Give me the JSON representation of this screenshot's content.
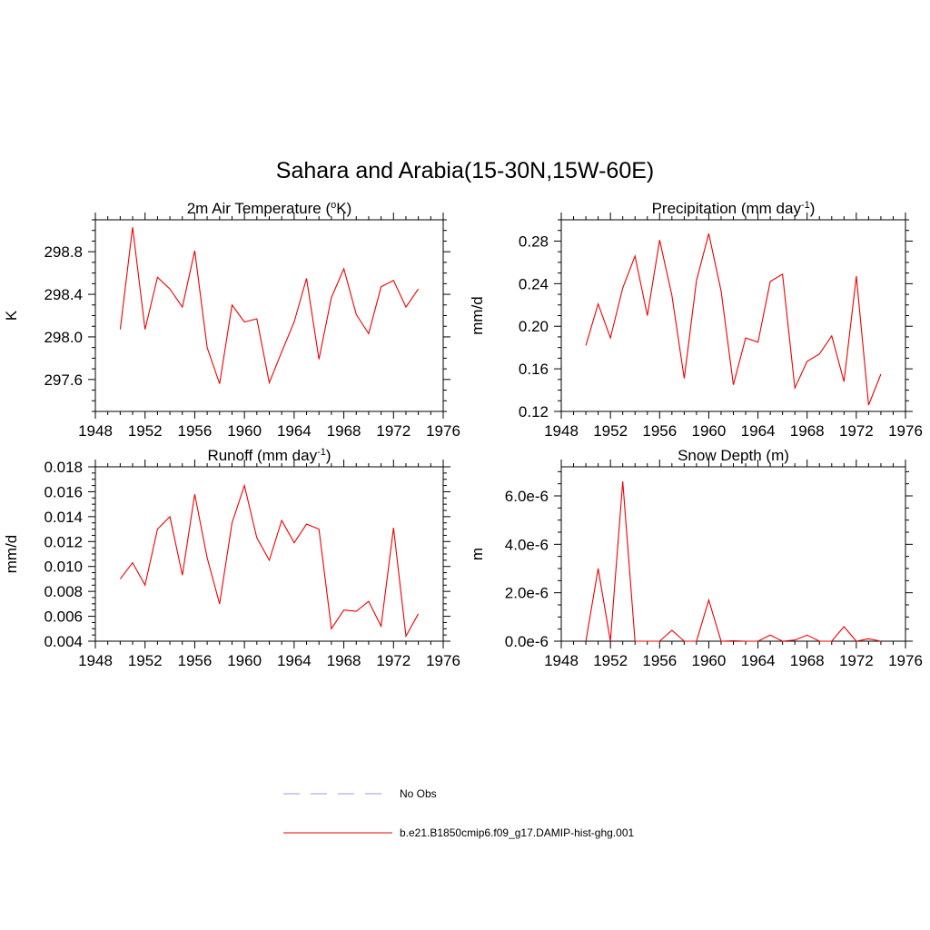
{
  "main_title": "Sahara and Arabia(15-30N,15W-60E)",
  "legend": [
    {
      "label": "No Obs",
      "color": "#9999ee",
      "dashed": true
    },
    {
      "label": "b.e21.B1850cmip6.f09_g17.DAMIP-hist-ghg.001",
      "color": "#ee0000",
      "dashed": false
    }
  ],
  "chart_data": [
    {
      "type": "line",
      "title": "2m Air Temperature (",
      "title_sup": "o",
      "title_tail": "K)",
      "ylabel": "K",
      "xlim": [
        1948,
        1976
      ],
      "ylim": [
        297.3,
        299.1
      ],
      "xticks": [
        1948,
        1952,
        1956,
        1960,
        1964,
        1968,
        1972,
        1976
      ],
      "yticks": [
        297.6,
        298.0,
        298.4,
        298.8
      ],
      "ytick_labels": [
        "297.6",
        "298.0",
        "298.4",
        "298.8"
      ],
      "x": [
        1950,
        1951,
        1952,
        1953,
        1954,
        1955,
        1956,
        1957,
        1958,
        1959,
        1960,
        1961,
        1962,
        1963,
        1964,
        1965,
        1966,
        1967,
        1968,
        1969,
        1970,
        1971,
        1972,
        1973,
        1974
      ],
      "series": [
        {
          "color": "#ee0000",
          "values": [
            298.07,
            299.03,
            298.07,
            298.56,
            298.45,
            298.28,
            298.81,
            297.9,
            297.56,
            298.3,
            298.14,
            298.17,
            297.57,
            297.86,
            298.14,
            298.55,
            297.79,
            298.37,
            298.64,
            298.21,
            298.03,
            298.47,
            298.53,
            298.28,
            298.45
          ]
        }
      ]
    },
    {
      "type": "line",
      "title": "Precipitation (mm day",
      "title_sup": "-1",
      "title_tail": ")",
      "ylabel": "mm/d",
      "xlim": [
        1948,
        1976
      ],
      "ylim": [
        0.12,
        0.3
      ],
      "xticks": [
        1948,
        1952,
        1956,
        1960,
        1964,
        1968,
        1972,
        1976
      ],
      "yticks": [
        0.12,
        0.16,
        0.2,
        0.24,
        0.28
      ],
      "ytick_labels": [
        "0.12",
        "0.16",
        "0.20",
        "0.24",
        "0.28"
      ],
      "x": [
        1950,
        1951,
        1952,
        1953,
        1954,
        1955,
        1956,
        1957,
        1958,
        1959,
        1960,
        1961,
        1962,
        1963,
        1964,
        1965,
        1966,
        1967,
        1968,
        1969,
        1970,
        1971,
        1972,
        1973,
        1974
      ],
      "series": [
        {
          "color": "#ee0000",
          "values": [
            0.182,
            0.221,
            0.189,
            0.236,
            0.266,
            0.21,
            0.281,
            0.229,
            0.151,
            0.243,
            0.287,
            0.233,
            0.145,
            0.189,
            0.185,
            0.242,
            0.249,
            0.142,
            0.167,
            0.174,
            0.191,
            0.148,
            0.247,
            0.126,
            0.155
          ]
        }
      ]
    },
    {
      "type": "line",
      "title": "Runoff (mm day",
      "title_sup": "-1",
      "title_tail": ")",
      "ylabel": "mm/d",
      "xlim": [
        1948,
        1976
      ],
      "ylim": [
        0.004,
        0.018
      ],
      "xticks": [
        1948,
        1952,
        1956,
        1960,
        1964,
        1968,
        1972,
        1976
      ],
      "yticks": [
        0.004,
        0.006,
        0.008,
        0.01,
        0.012,
        0.014,
        0.016,
        0.018
      ],
      "ytick_labels": [
        "0.004",
        "0.006",
        "0.008",
        "0.010",
        "0.012",
        "0.014",
        "0.016",
        "0.018"
      ],
      "x": [
        1950,
        1951,
        1952,
        1953,
        1954,
        1955,
        1956,
        1957,
        1958,
        1959,
        1960,
        1961,
        1962,
        1963,
        1964,
        1965,
        1966,
        1967,
        1968,
        1969,
        1970,
        1971,
        1972,
        1973,
        1974
      ],
      "series": [
        {
          "color": "#ee0000",
          "values": [
            0.009,
            0.0103,
            0.0085,
            0.013,
            0.014,
            0.0093,
            0.0158,
            0.0107,
            0.007,
            0.0135,
            0.0165,
            0.0123,
            0.0105,
            0.0137,
            0.0119,
            0.0134,
            0.013,
            0.005,
            0.0065,
            0.0064,
            0.0072,
            0.0052,
            0.0131,
            0.0044,
            0.0062
          ]
        }
      ]
    },
    {
      "type": "line",
      "title": "Snow Depth (m)",
      "title_sup": "",
      "title_tail": "",
      "ylabel": "m",
      "xlim": [
        1948,
        1976
      ],
      "ylim": [
        0,
        7.2e-06
      ],
      "xticks": [
        1948,
        1952,
        1956,
        1960,
        1964,
        1968,
        1972,
        1976
      ],
      "yticks": [
        0,
        2e-06,
        4e-06,
        6e-06
      ],
      "ytick_labels": [
        "0.0e-6",
        "2.0e-6",
        "4.0e-6",
        "6.0e-6"
      ],
      "x": [
        1950,
        1951,
        1952,
        1953,
        1954,
        1955,
        1956,
        1957,
        1958,
        1959,
        1960,
        1961,
        1962,
        1963,
        1964,
        1965,
        1966,
        1967,
        1968,
        1969,
        1970,
        1971,
        1972,
        1973,
        1974
      ],
      "series": [
        {
          "color": "#ee0000",
          "values": [
            0,
            3e-06,
            0,
            6.6e-06,
            0,
            0,
            0,
            4.5e-07,
            0,
            0,
            1.7e-06,
            0,
            2e-08,
            0,
            0,
            2.5e-07,
            0,
            5e-08,
            2.5e-07,
            0,
            0,
            6e-07,
            0,
            1e-07,
            0
          ]
        }
      ]
    }
  ]
}
